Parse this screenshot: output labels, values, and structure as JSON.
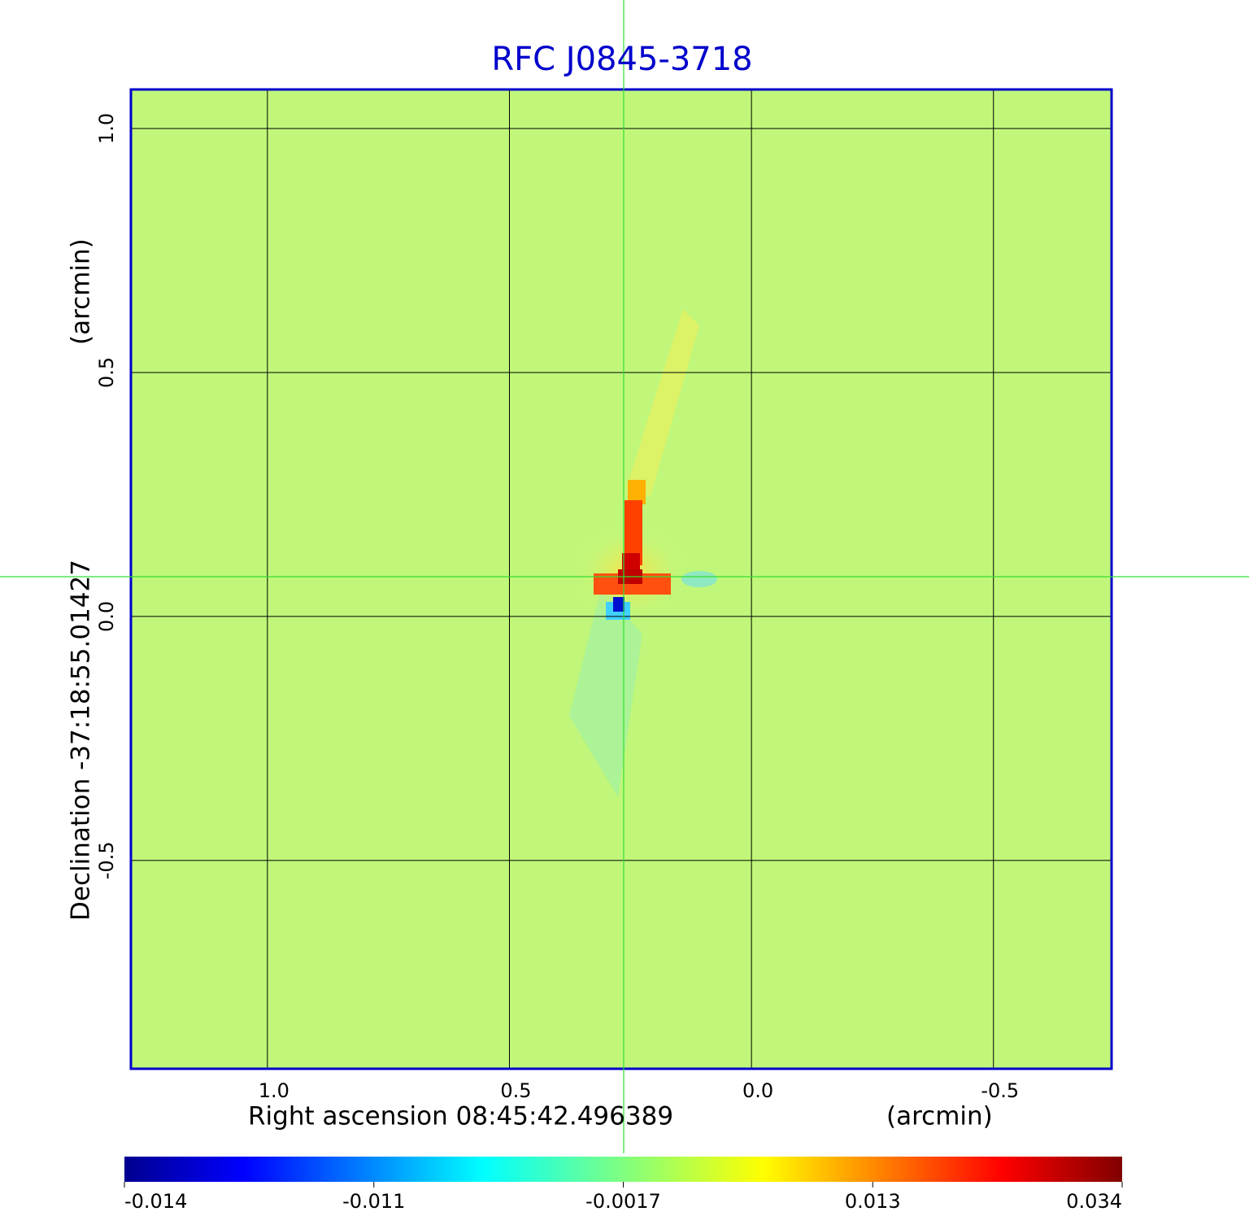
{
  "chart_data": {
    "type": "image",
    "title": "RFC J0845-3718",
    "xlabel": "Right ascension  08:45:42.496389",
    "xunit": "(arcmin)",
    "ylabel": "Declination  -37:18:55.01427",
    "yunit": "(arcmin)",
    "xlim": [
      1.282,
      -0.744
    ],
    "ylim": [
      -0.927,
      1.08
    ],
    "xticks": [
      {
        "value": 1,
        "label": "1.0"
      },
      {
        "value": 0.5,
        "label": "0.5"
      },
      {
        "value": 0,
        "label": "0.0"
      },
      {
        "value": -0.5,
        "label": "-0.5"
      }
    ],
    "yticks": [
      {
        "value": 1,
        "label": "1.0"
      },
      {
        "value": 0.5,
        "label": "0.5"
      },
      {
        "value": 0,
        "label": "0.0"
      },
      {
        "value": -0.5,
        "label": "-0.5"
      }
    ],
    "grid": true,
    "colorbar": {
      "ticks": [
        -0.014,
        -0.011,
        -0.0017,
        0.013,
        0.034
      ]
    }
  }
}
